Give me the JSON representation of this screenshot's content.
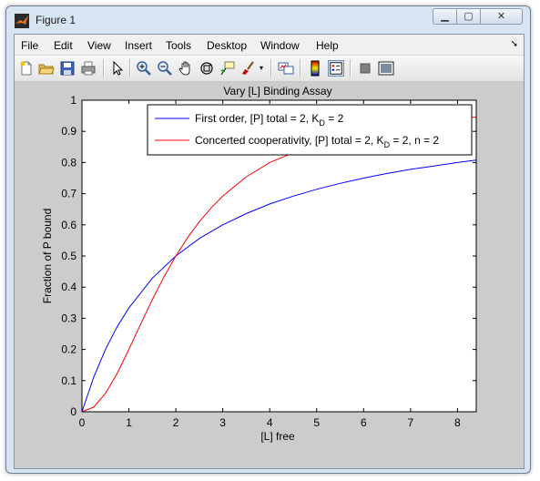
{
  "window": {
    "title": "Figure 1"
  },
  "menu": [
    "File",
    "Edit",
    "View",
    "Insert",
    "Tools",
    "Desktop",
    "Window",
    "Help"
  ],
  "toolbar": {
    "icons": [
      "new-figure-icon",
      "open-file-icon",
      "save-icon",
      "print-icon",
      "edit-plot-arrow-icon",
      "zoom-in-icon",
      "zoom-out-icon",
      "pan-hand-icon",
      "rotate-3d-icon",
      "data-cursor-icon",
      "brush-icon",
      "brush-dropdown-icon",
      "link-plot-icon",
      "insert-colorbar-icon",
      "insert-legend-icon",
      "hide-plot-tools-icon",
      "show-plot-tools-icon"
    ]
  },
  "chart_data": {
    "type": "line",
    "title": "Vary [L] Binding Assay",
    "xlabel": "[L] free",
    "ylabel": "Fraction of P bound",
    "xlim": [
      0,
      8.4
    ],
    "ylim": [
      0,
      1
    ],
    "xticks": [
      "0",
      "1",
      "2",
      "3",
      "4",
      "5",
      "6",
      "7",
      "8"
    ],
    "yticks": [
      "0",
      "0.1",
      "0.2",
      "0.3",
      "0.4",
      "0.5",
      "0.6",
      "0.7",
      "0.8",
      "0.9",
      "1"
    ],
    "grid": false,
    "legend_position": "top-right",
    "series": [
      {
        "name": "First order, [P] total = 2, K_D = 2",
        "legend_main": "First order, [P] total = 2, K",
        "legend_sub": "D",
        "legend_tail": " = 2",
        "color": "#0000ff",
        "x": [
          0,
          0.25,
          0.5,
          0.75,
          1,
          1.5,
          2,
          2.5,
          3,
          3.5,
          4,
          4.5,
          5,
          5.5,
          6,
          6.5,
          7,
          7.5,
          8,
          8.4
        ],
        "y": [
          0,
          0.111,
          0.2,
          0.273,
          0.333,
          0.429,
          0.5,
          0.556,
          0.6,
          0.636,
          0.667,
          0.692,
          0.714,
          0.733,
          0.75,
          0.765,
          0.778,
          0.789,
          0.8,
          0.808
        ]
      },
      {
        "name": "Concerted cooperativity, [P] total = 2, K_D = 2, n = 2",
        "legend_main": "Concerted cooperativity, [P] total = 2, K",
        "legend_sub": "D",
        "legend_tail": " = 2, n = 2",
        "color": "#ff0000",
        "x": [
          0,
          0.25,
          0.5,
          0.75,
          1,
          1.25,
          1.5,
          1.75,
          2,
          2.25,
          2.5,
          2.75,
          3,
          3.5,
          4,
          5,
          6,
          7,
          8,
          8.4
        ],
        "y": [
          0,
          0.015,
          0.059,
          0.123,
          0.2,
          0.281,
          0.36,
          0.434,
          0.5,
          0.559,
          0.61,
          0.654,
          0.692,
          0.754,
          0.8,
          0.862,
          0.9,
          0.925,
          0.941,
          0.946
        ]
      }
    ]
  }
}
